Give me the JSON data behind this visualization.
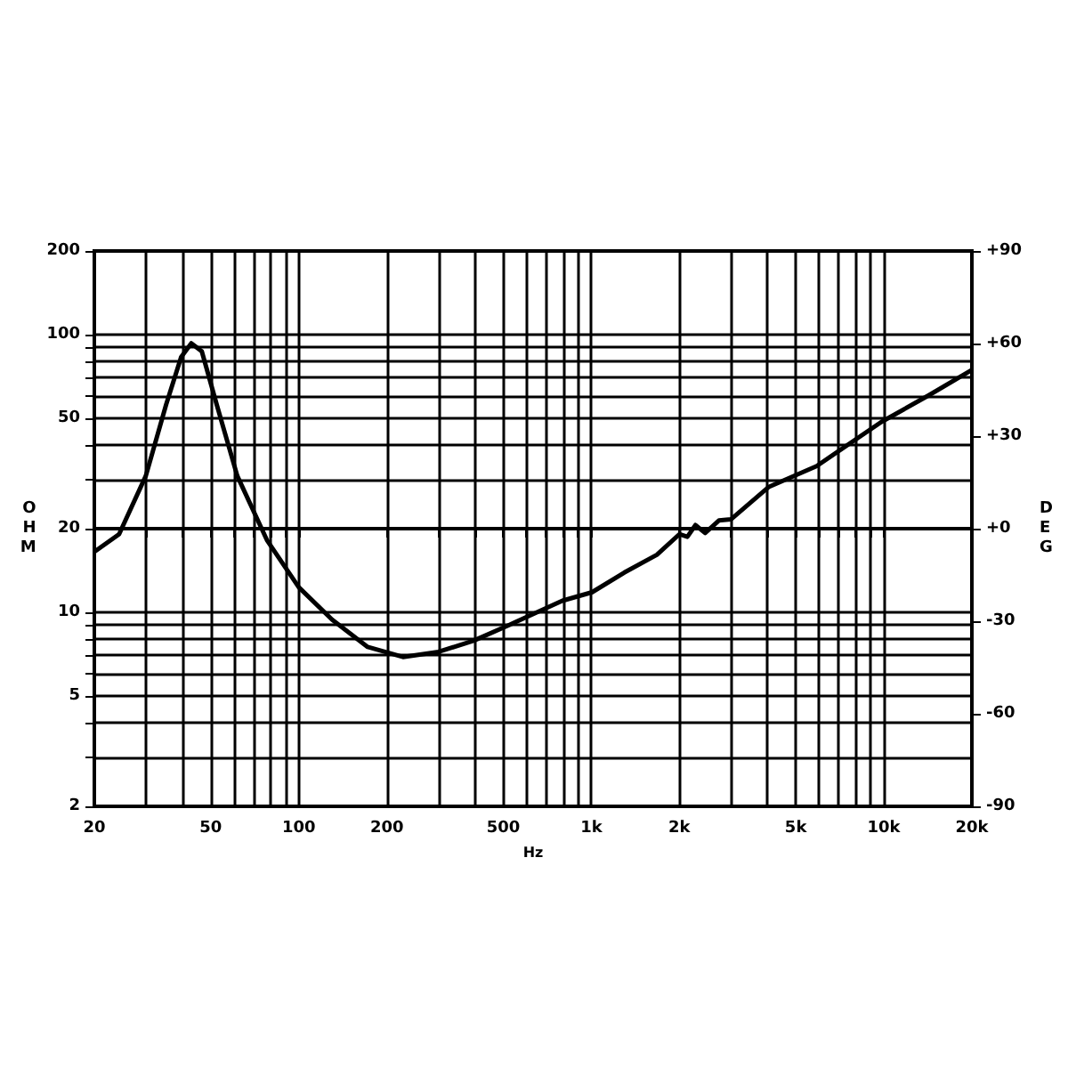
{
  "chart_data": {
    "type": "line",
    "xlabel": "Hz",
    "ylabel": "OHM",
    "y2label": "DEG",
    "log": "xy",
    "grid": true,
    "x": [
      20,
      24.3,
      30,
      35.2,
      39.6,
      42.9,
      46.6,
      52.4,
      61.6,
      77.8,
      100,
      130,
      172,
      227,
      300,
      396,
      524,
      548,
      796,
      1005,
      1297,
      1675,
      2000,
      2130,
      2270,
      2450,
      2730,
      3000,
      4050,
      5890,
      9820,
      14230,
      20000
    ],
    "series": [
      {
        "color": "#000000",
        "values": [
          16.5,
          19.1,
          31,
          56,
          83,
          93,
          87,
          56,
          31,
          18.2,
          12.3,
          9.4,
          7.5,
          6.9,
          7.2,
          7.9,
          9.0,
          9.2,
          11.0,
          11.8,
          13.9,
          16.1,
          19.1,
          18.7,
          20.6,
          19.3,
          21.4,
          21.6,
          28.3,
          33.6,
          48.5,
          60.4,
          74.6
        ]
      }
    ],
    "xlim": [
      20,
      20000
    ],
    "xticks": [
      20,
      {
        "value": 30,
        "label": null
      },
      {
        "value": 40,
        "label": null
      },
      50,
      {
        "value": 60,
        "label": null
      },
      {
        "value": 70,
        "label": null
      },
      {
        "value": 80,
        "label": null
      },
      {
        "value": 90,
        "label": null
      },
      100,
      200,
      {
        "value": 300,
        "label": null
      },
      {
        "value": 400,
        "label": null
      },
      500,
      {
        "value": 600,
        "label": null
      },
      {
        "value": 700,
        "label": null
      },
      {
        "value": 800,
        "label": null
      },
      {
        "value": 900,
        "label": null
      },
      {
        "value": 1000,
        "label": "1k"
      },
      {
        "value": 2000,
        "label": "2k"
      },
      {
        "value": 3000,
        "label": null
      },
      {
        "value": 4000,
        "label": null
      },
      {
        "value": 5000,
        "label": "5k"
      },
      {
        "value": 6000,
        "label": null
      },
      {
        "value": 7000,
        "label": null
      },
      {
        "value": 8000,
        "label": null
      },
      {
        "value": 9000,
        "label": null
      },
      {
        "value": 10000,
        "label": "10k"
      },
      {
        "value": 20000,
        "label": "20k"
      }
    ],
    "ylim": [
      2,
      200
    ],
    "yticks": [
      2,
      {
        "value": 3,
        "label": null
      },
      {
        "value": 4,
        "label": null
      },
      5,
      {
        "value": 6,
        "label": null
      },
      {
        "value": 7,
        "label": null
      },
      {
        "value": 8,
        "label": null
      },
      {
        "value": 9,
        "label": null
      },
      10,
      20,
      {
        "value": 30,
        "label": null
      },
      {
        "value": 40,
        "label": null
      },
      50,
      {
        "value": 60,
        "label": null
      },
      {
        "value": 70,
        "label": null
      },
      {
        "value": 80,
        "label": null
      },
      {
        "value": 90,
        "label": null
      },
      100,
      200
    ],
    "y2lim": [
      -90,
      90
    ],
    "y2ticks": [
      {
        "value": -90,
        "label": "-90"
      },
      {
        "value": -60,
        "label": "-60"
      },
      {
        "value": -30,
        "label": "-30"
      },
      {
        "value": 0,
        "label": "+0"
      },
      {
        "value": 30,
        "label": "+30"
      },
      {
        "value": 60,
        "label": "+60"
      },
      {
        "value": 90,
        "label": "+90"
      }
    ]
  }
}
